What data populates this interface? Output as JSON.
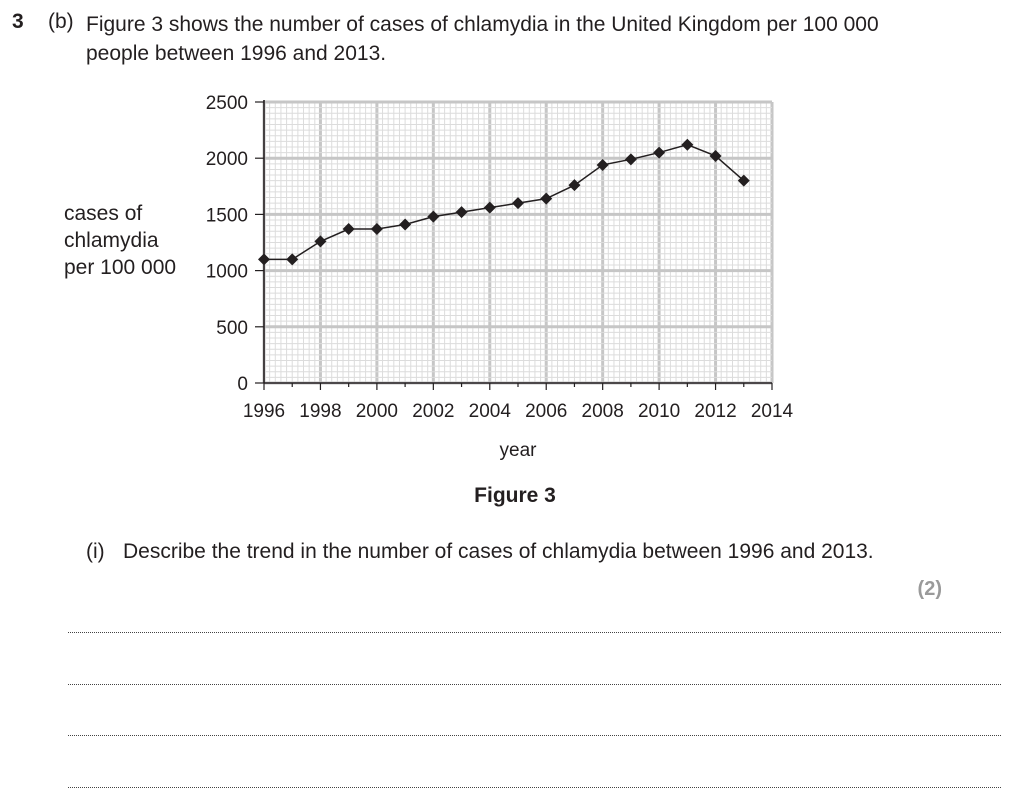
{
  "question": {
    "number": "3",
    "part": "(b)",
    "intro": "Figure 3 shows the number of cases of chlamydia in the United Kingdom per 100 000 people between 1996 and 2013.",
    "figure_label": "Figure 3",
    "subpart": "(i)",
    "subquestion": "Describe the trend in the number of cases of chlamydia between 1996 and 2013.",
    "marks": "(2)"
  },
  "chart_data": {
    "type": "line",
    "title": "",
    "xlabel": "year",
    "ylabel": "cases of chlamydia per 100 000",
    "ylabel_lines": [
      "cases of",
      "chlamydia",
      "per 100 000"
    ],
    "xlim": [
      1996,
      2014
    ],
    "ylim": [
      0,
      2500
    ],
    "x_ticks": [
      1996,
      1998,
      2000,
      2002,
      2004,
      2006,
      2008,
      2010,
      2012,
      2014
    ],
    "y_ticks": [
      0,
      500,
      1000,
      1500,
      2000,
      2500
    ],
    "grid": true,
    "marker": "diamond",
    "series": [
      {
        "x": [
          1996,
          1997,
          1998,
          1999,
          2000,
          2001,
          2002,
          2003,
          2004,
          2005,
          2006,
          2007,
          2008,
          2009,
          2010,
          2011,
          2012,
          2013
        ],
        "values": [
          1100,
          1100,
          1260,
          1370,
          1370,
          1410,
          1480,
          1520,
          1560,
          1600,
          1640,
          1760,
          1940,
          1990,
          2050,
          2120,
          2020,
          1800
        ]
      }
    ]
  },
  "answer_lines": 4
}
